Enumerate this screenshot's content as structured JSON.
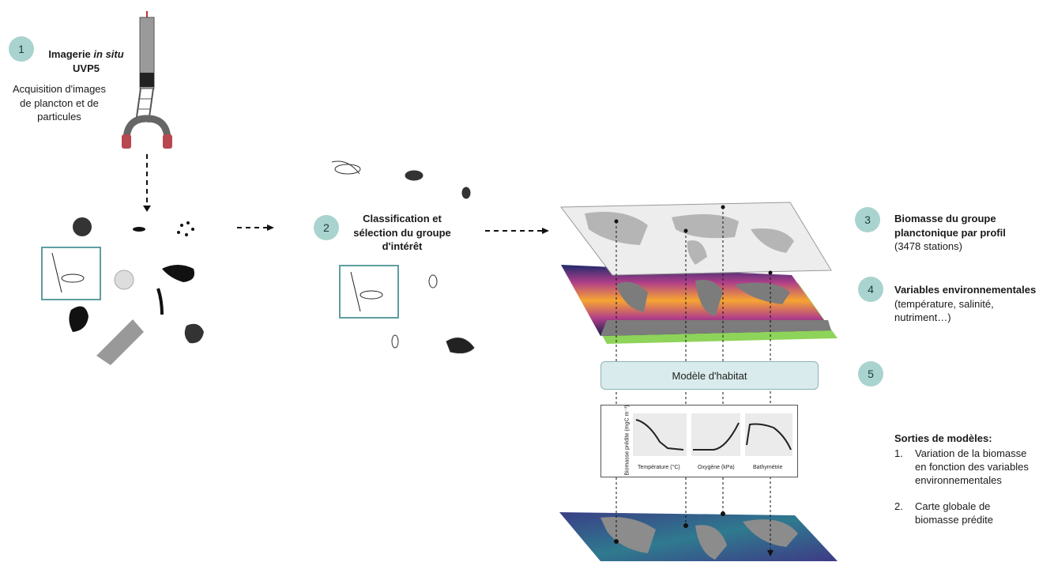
{
  "step1": {
    "badge": "1",
    "title_a": "Imagerie ",
    "title_b": "in situ",
    "title_c": "UVP5",
    "desc": "Acquisition d'images de plancton et de particules"
  },
  "step2": {
    "badge": "2",
    "title": "Classification et sélection du groupe d'intérêt"
  },
  "step3": {
    "badge": "3",
    "title": "Biomasse du groupe planctonique par profil",
    "sub": "(3478 stations)"
  },
  "step4": {
    "badge": "4",
    "title": "Variables environnementales",
    "sub": "(température, salinité, nutriment…)"
  },
  "step5": {
    "badge": "5",
    "label": "Modèle d'habitat"
  },
  "plots": {
    "ylabel": "Biomasse prédite (mgC m⁻³)",
    "x1": "Température (°C)",
    "x2": "Oxygène (kPa)",
    "x3": "Bathymétrie"
  },
  "outputs": {
    "title": "Sorties de modèles:",
    "items": [
      {
        "n": "1.",
        "text": "Variation de la biomasse en fonction des variables environnementales"
      },
      {
        "n": "2.",
        "text": "Carte globale de biomasse prédite"
      }
    ]
  },
  "colors": {
    "badge": "#a9d3ce",
    "frame": "#5f9ea0",
    "model_box": "#d9ebec"
  }
}
